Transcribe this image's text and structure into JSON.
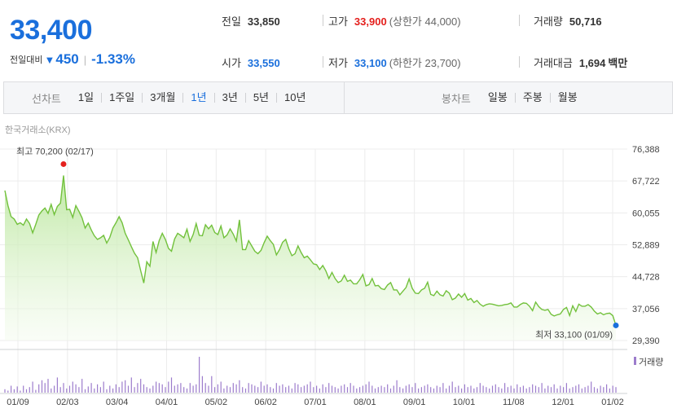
{
  "header": {
    "price": "33,400",
    "change_label": "전일대비",
    "change_arrow": "▼",
    "change_value": "450",
    "change_percent": "-1.33%",
    "stats": {
      "prev_label": "전일",
      "prev_value": "33,850",
      "high_label": "고가",
      "high_value": "33,900",
      "upper_limit": "(상한가 44,000)",
      "volume_label": "거래량",
      "volume_value": "50,716",
      "open_label": "시가",
      "open_value": "33,550",
      "low_label": "저가",
      "low_value": "33,100",
      "lower_limit": "(하한가 23,700)",
      "amount_label": "거래대금",
      "amount_value": "1,694",
      "amount_unit": "백만"
    }
  },
  "period_bar": {
    "line_label": "선차트",
    "line_tabs": [
      "1일",
      "1주일",
      "3개월",
      "1년",
      "3년",
      "5년",
      "10년"
    ],
    "active_tab": "1년",
    "candle_label": "봉차트",
    "candle_tabs": [
      "일봉",
      "주봉",
      "월봉"
    ]
  },
  "exchange": "한국거래소(KRX)",
  "colors": {
    "up": "#e4201d",
    "down": "#1a6fdc",
    "line": "#72c13c",
    "volume": "#9c7ccc"
  },
  "chart_data": {
    "type": "area",
    "y_ticks": [
      "76,388",
      "67,722",
      "60,055",
      "52,889",
      "44,728",
      "37,056",
      "29,390"
    ],
    "ylim": [
      29390,
      76388
    ],
    "x_labels": [
      "01/09",
      "02/03",
      "03/04",
      "04/01",
      "05/02",
      "06/02",
      "07/01",
      "08/01",
      "09/01",
      "10/01",
      "11/08",
      "12/01",
      "01/02"
    ],
    "max_annotation": "최고 70,200 (02/17)",
    "min_annotation": "최저 33,100 (01/09)",
    "volume_legend": "거래량",
    "series": [
      {
        "values": [
          66200,
          62500,
          59800,
          59200,
          57900,
          58300,
          57700,
          59200,
          58100,
          55800,
          57900,
          60200,
          61200,
          61900,
          60600,
          62800,
          60300,
          62300,
          63100,
          69900,
          61500,
          61600,
          59600,
          62500,
          61100,
          59500,
          57000,
          58200,
          56500,
          55100,
          54200,
          54600,
          55200,
          53300,
          54700,
          57000,
          58300,
          59800,
          58300,
          55700,
          54100,
          52400,
          50800,
          49700,
          46500,
          43500,
          48700,
          47600,
          53700,
          51000,
          53900,
          55700,
          54200,
          52000,
          51300,
          54300,
          55700,
          55200,
          54600,
          56700,
          53700,
          55400,
          58100,
          55200,
          55100,
          57800,
          56800,
          57700,
          55900,
          55400,
          57500,
          54600,
          55300,
          56800,
          55500,
          53800,
          59000,
          51700,
          51700,
          53900,
          52600,
          51300,
          50700,
          51500,
          53400,
          55000,
          53900,
          53000,
          50400,
          51700,
          53500,
          54200,
          51900,
          50200,
          50700,
          52600,
          51000,
          49700,
          50100,
          49200,
          48200,
          48000,
          46800,
          47800,
          46500,
          44600,
          46100,
          44600,
          43600,
          44000,
          45400,
          43900,
          44200,
          43300,
          43300,
          44300,
          45600,
          42800,
          43100,
          44600,
          42800,
          42900,
          42100,
          41900,
          43000,
          43600,
          41800,
          41800,
          40600,
          41500,
          42400,
          44500,
          42200,
          41000,
          40900,
          41800,
          42200,
          43700,
          40700,
          40400,
          41500,
          40600,
          40300,
          41600,
          41000,
          39400,
          39800,
          40800,
          40000,
          40900,
          39300,
          39700,
          38700,
          39200,
          38300,
          37800,
          38200,
          38400,
          38300,
          38100,
          37900,
          38000,
          38200,
          38300,
          38600,
          37600,
          37600,
          38200,
          38600,
          38500,
          37800,
          36700,
          38800,
          37700,
          37000,
          36800,
          37000,
          35800,
          35400,
          35700,
          35900,
          37000,
          37500,
          35500,
          37900,
          36500,
          38300,
          37800,
          37800,
          38200,
          37600,
          36600,
          35900,
          36200,
          35700,
          36000,
          36100,
          35500,
          33100
        ],
        "volume": [
          5,
          3,
          10,
          5,
          9,
          3,
          10,
          5,
          8,
          16,
          4,
          12,
          18,
          14,
          20,
          6,
          10,
          22,
          8,
          14,
          6,
          10,
          16,
          12,
          8,
          20,
          5,
          9,
          14,
          6,
          12,
          8,
          16,
          5,
          10,
          6,
          12,
          8,
          16,
          18,
          10,
          22,
          8,
          14,
          20,
          12,
          8,
          6,
          10,
          16,
          14,
          12,
          8,
          16,
          22,
          10,
          12,
          14,
          8,
          6,
          14,
          10,
          12,
          52,
          24,
          14,
          10,
          24,
          8,
          12,
          16,
          6,
          10,
          8,
          14,
          12,
          18,
          8,
          6,
          14,
          12,
          10,
          8,
          16,
          10,
          12,
          8,
          6,
          14,
          10,
          12,
          8,
          10,
          6,
          14,
          12,
          8,
          10,
          12,
          16,
          8,
          10,
          6,
          12,
          8,
          14,
          10,
          8,
          6,
          10,
          12,
          8,
          14,
          10,
          6,
          8,
          10,
          12,
          16,
          10,
          6,
          8,
          10,
          8,
          12,
          6,
          10,
          18,
          8,
          6,
          10,
          12,
          8,
          14,
          6,
          8,
          10,
          12,
          8,
          6,
          10,
          8,
          14,
          6,
          10,
          16,
          8,
          10,
          6,
          12,
          8,
          10,
          6,
          8,
          14,
          10,
          8,
          6,
          10,
          12,
          8,
          6,
          14,
          8,
          10,
          6,
          12,
          8,
          10,
          6,
          8,
          12,
          10,
          8,
          14,
          6,
          10,
          8,
          12,
          6,
          10,
          8,
          14,
          6,
          8,
          10,
          12,
          6,
          8,
          10,
          16,
          8,
          6,
          10,
          8,
          12,
          6,
          10,
          8
        ]
      }
    ]
  }
}
